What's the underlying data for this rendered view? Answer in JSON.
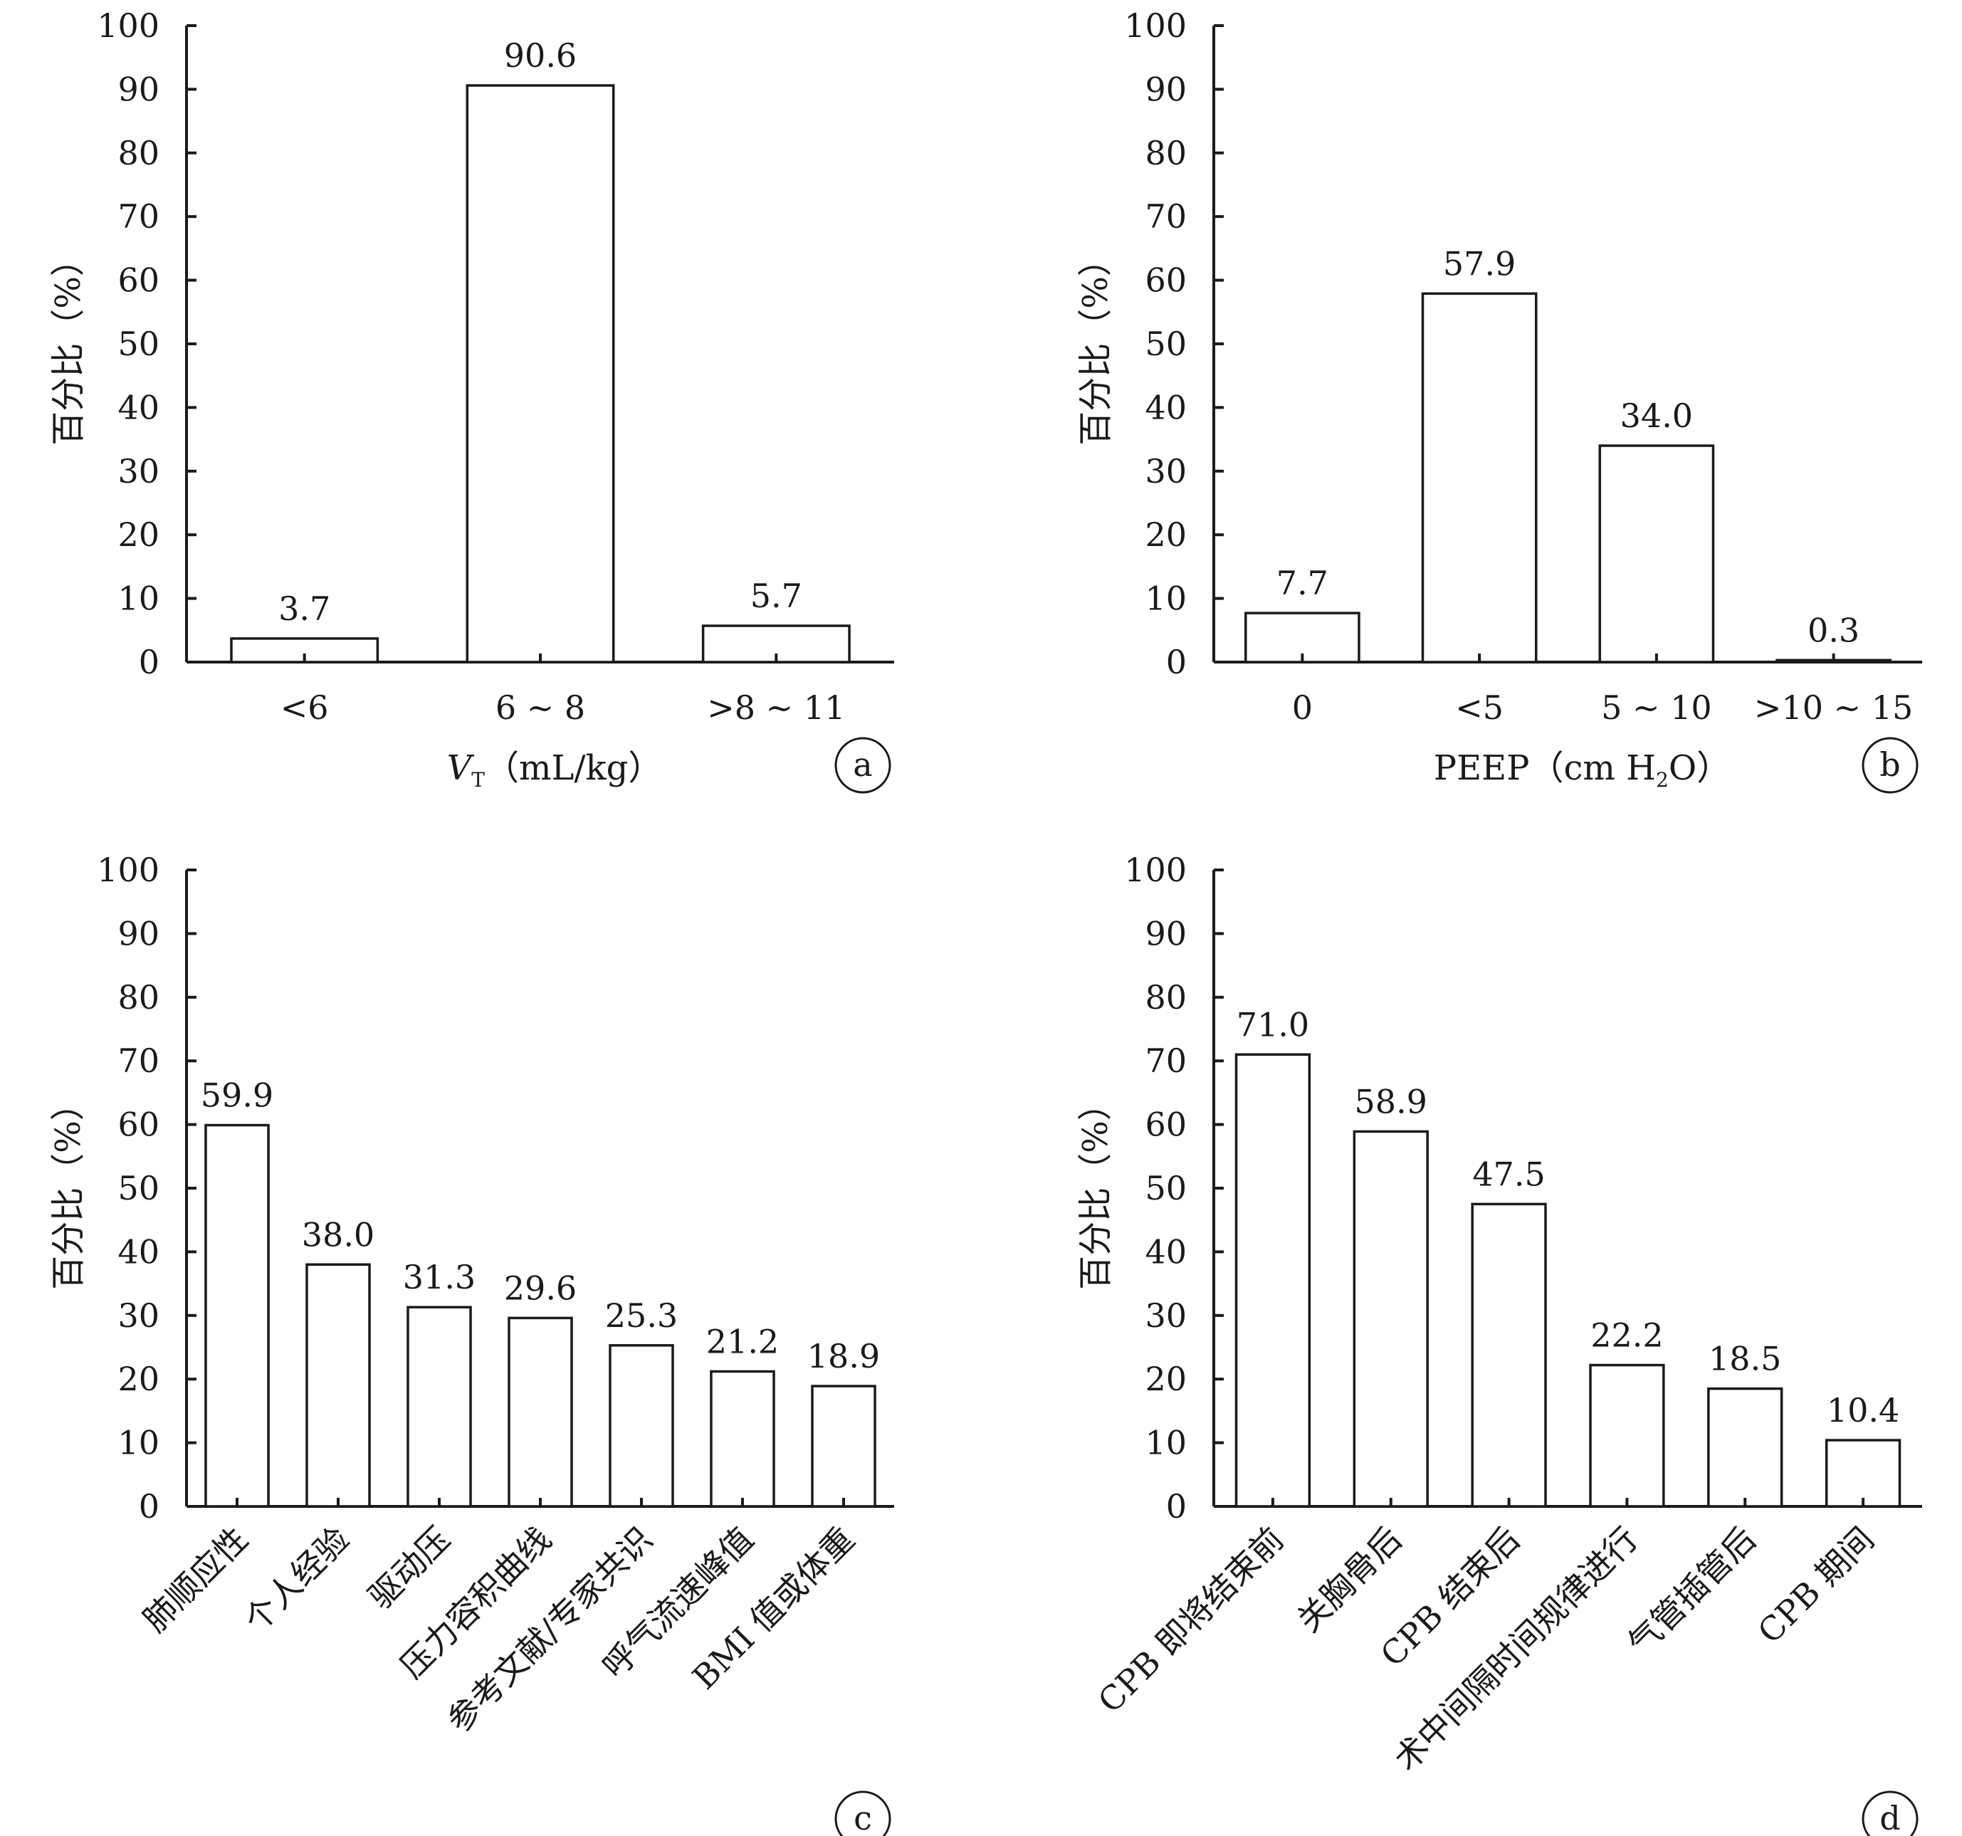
{
  "chart_data": [
    {
      "panel": "a",
      "type": "bar",
      "categories": [
        "<6",
        "6 ~ 8",
        ">8 ~ 11"
      ],
      "values": [
        3.7,
        90.6,
        5.7
      ],
      "data_labels": [
        "3.7",
        "90.6",
        "5.7"
      ],
      "ylabel": "百分比（%）",
      "xlabel": "VT（mL/kg）",
      "xlabel_parts": {
        "symbol": "V",
        "subscript": "T",
        "rest": "（mL/kg）"
      },
      "ylim": [
        0,
        100
      ],
      "yticks": [
        0,
        10,
        20,
        30,
        40,
        50,
        60,
        70,
        80,
        90,
        100
      ],
      "grid": false,
      "category_label_style": "horizontal"
    },
    {
      "panel": "b",
      "type": "bar",
      "categories": [
        "0",
        "<5",
        "5 ~ 10",
        ">10 ~ 15"
      ],
      "values": [
        7.7,
        57.9,
        34.0,
        0.3
      ],
      "data_labels": [
        "7.7",
        "57.9",
        "34.0",
        "0.3"
      ],
      "ylabel": "百分比（%）",
      "xlabel": "PEEP（cm H2O）",
      "xlabel_parts": {
        "pre": "PEEP（cm H",
        "subscript": "2",
        "post": "O）"
      },
      "ylim": [
        0,
        100
      ],
      "yticks": [
        0,
        10,
        20,
        30,
        40,
        50,
        60,
        70,
        80,
        90,
        100
      ],
      "grid": false,
      "category_label_style": "horizontal"
    },
    {
      "panel": "c",
      "type": "bar",
      "categories": [
        "肺顺应性",
        "个人经验",
        "驱动压",
        "压力容积曲线",
        "参考文献/专家共识",
        "呼气流速峰值",
        "BMI 值或体重"
      ],
      "values": [
        59.9,
        38.0,
        31.3,
        29.6,
        25.3,
        21.2,
        18.9
      ],
      "data_labels": [
        "59.9",
        "38.0",
        "31.3",
        "29.6",
        "25.3",
        "21.2",
        "18.9"
      ],
      "ylabel": "百分比（%）",
      "xlabel": "",
      "ylim": [
        0,
        100
      ],
      "yticks": [
        0,
        10,
        20,
        30,
        40,
        50,
        60,
        70,
        80,
        90,
        100
      ],
      "grid": false,
      "category_label_style": "rotated"
    },
    {
      "panel": "d",
      "type": "bar",
      "categories": [
        "CPB 即将结束前",
        "关胸骨后",
        "CPB 结束后",
        "术中间隔时间规律进行",
        "气管插管后",
        "CPB 期间"
      ],
      "values": [
        71.0,
        58.9,
        47.5,
        22.2,
        18.5,
        10.4
      ],
      "data_labels": [
        "71.0",
        "58.9",
        "47.5",
        "22.2",
        "18.5",
        "10.4"
      ],
      "ylabel": "百分比（%）",
      "xlabel": "",
      "ylim": [
        0,
        100
      ],
      "yticks": [
        0,
        10,
        20,
        30,
        40,
        50,
        60,
        70,
        80,
        90,
        100
      ],
      "grid": false,
      "category_label_style": "rotated"
    }
  ]
}
